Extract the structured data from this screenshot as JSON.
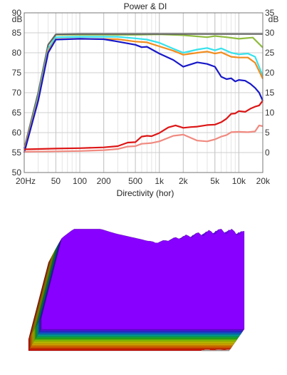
{
  "charts": [
    {
      "title": "Power & DI",
      "left_unit": "dB",
      "right_unit": "dB",
      "left_ticks": [
        "90",
        "85",
        "80",
        "75",
        "70",
        "65",
        "60",
        "55",
        "50"
      ],
      "right_ticks": [
        "35",
        "30",
        "25",
        "20",
        "15",
        "10",
        "5",
        "0"
      ],
      "x_ticks": [
        "20Hz",
        "50",
        "100",
        "200",
        "500",
        "1k",
        "2k",
        "5k",
        "10k",
        "20k"
      ]
    },
    {
      "title": "Directivity (hor)"
    }
  ],
  "chart_data": [
    {
      "type": "line",
      "title": "Power & DI",
      "x_scale": "log",
      "xlim": [
        20,
        20000
      ],
      "ylim": [
        50,
        90
      ],
      "y2lim": [
        -5,
        35
      ],
      "x_tick_values": [
        20,
        50,
        100,
        200,
        500,
        1000,
        2000,
        5000,
        10000,
        20000
      ],
      "grid": true,
      "series": [
        {
          "color": "#8fbc3f",
          "axis": "left",
          "points": [
            [
              20,
              56
            ],
            [
              30,
              70
            ],
            [
              40,
              82
            ],
            [
              50,
              84.5
            ],
            [
              100,
              84.5
            ],
            [
              500,
              84.5
            ],
            [
              1000,
              84.6
            ],
            [
              2000,
              84.4
            ],
            [
              4000,
              83.9
            ],
            [
              5000,
              84.2
            ],
            [
              7000,
              83.9
            ],
            [
              10000,
              83.5
            ],
            [
              15000,
              83.8
            ],
            [
              20000,
              81.3
            ]
          ]
        },
        {
          "color": "#666666",
          "axis": "left",
          "points": [
            [
              20,
              56
            ],
            [
              30,
              70
            ],
            [
              40,
              82
            ],
            [
              50,
              84.6
            ],
            [
              100,
              84.7
            ],
            [
              500,
              84.7
            ],
            [
              1000,
              84.7
            ],
            [
              2000,
              84.7
            ],
            [
              5000,
              84.7
            ],
            [
              10000,
              84.7
            ],
            [
              20000,
              84.7
            ]
          ]
        },
        {
          "color": "#36e2ec",
          "axis": "left",
          "points": [
            [
              20,
              55.5
            ],
            [
              30,
              69
            ],
            [
              40,
              81
            ],
            [
              50,
              83.9
            ],
            [
              100,
              84
            ],
            [
              300,
              84
            ],
            [
              500,
              83.6
            ],
            [
              700,
              83.3
            ],
            [
              1000,
              82.5
            ],
            [
              1500,
              81
            ],
            [
              2000,
              80
            ],
            [
              3000,
              80.8
            ],
            [
              4000,
              81.2
            ],
            [
              5000,
              80.6
            ],
            [
              6000,
              81.1
            ],
            [
              8000,
              80
            ],
            [
              10000,
              79.6
            ],
            [
              13000,
              79.8
            ],
            [
              16000,
              79
            ],
            [
              20000,
              74.2
            ]
          ]
        },
        {
          "color": "#f28c1e",
          "axis": "left",
          "points": [
            [
              20,
              55.5
            ],
            [
              30,
              68.5
            ],
            [
              40,
              80.5
            ],
            [
              50,
              83.4
            ],
            [
              100,
              83.5
            ],
            [
              300,
              83.4
            ],
            [
              500,
              82.8
            ],
            [
              700,
              82.6
            ],
            [
              1000,
              81.6
            ],
            [
              1500,
              80.5
            ],
            [
              2000,
              79.5
            ],
            [
              3000,
              80
            ],
            [
              4000,
              80.3
            ],
            [
              5000,
              79.8
            ],
            [
              6000,
              80.1
            ],
            [
              8000,
              79
            ],
            [
              10000,
              78.8
            ],
            [
              13000,
              78.8
            ],
            [
              16000,
              77.5
            ],
            [
              20000,
              73.5
            ]
          ]
        },
        {
          "color": "#1818c8",
          "axis": "left",
          "points": [
            [
              20,
              55
            ],
            [
              30,
              68
            ],
            [
              40,
              80
            ],
            [
              50,
              83.3
            ],
            [
              100,
              83.5
            ],
            [
              200,
              83.4
            ],
            [
              300,
              82.8
            ],
            [
              500,
              82
            ],
            [
              600,
              81.4
            ],
            [
              700,
              81.5
            ],
            [
              1000,
              79.8
            ],
            [
              1500,
              78.2
            ],
            [
              2000,
              76.5
            ],
            [
              3000,
              77.6
            ],
            [
              4000,
              77.2
            ],
            [
              5000,
              76.5
            ],
            [
              6000,
              74
            ],
            [
              7000,
              73.4
            ],
            [
              8000,
              73.6
            ],
            [
              9000,
              72.8
            ],
            [
              10000,
              73.2
            ],
            [
              12000,
              73
            ],
            [
              14000,
              72.2
            ],
            [
              16000,
              71.2
            ],
            [
              18000,
              70
            ],
            [
              20000,
              68
            ]
          ]
        },
        {
          "color": "#dd1515",
          "axis": "left",
          "points": [
            [
              20,
              55.8
            ],
            [
              50,
              56
            ],
            [
              100,
              56.1
            ],
            [
              200,
              56.3
            ],
            [
              300,
              56.6
            ],
            [
              400,
              57.5
            ],
            [
              500,
              57.6
            ],
            [
              600,
              59
            ],
            [
              700,
              59.2
            ],
            [
              800,
              59.1
            ],
            [
              1000,
              59.9
            ],
            [
              1300,
              61.3
            ],
            [
              1600,
              61.8
            ],
            [
              2000,
              61.2
            ],
            [
              2500,
              61.4
            ],
            [
              3000,
              61.5
            ],
            [
              4000,
              61.9
            ],
            [
              5000,
              62
            ],
            [
              6000,
              62.6
            ],
            [
              7000,
              63.5
            ],
            [
              8000,
              64.7
            ],
            [
              9000,
              64.8
            ],
            [
              10000,
              65.4
            ],
            [
              12000,
              65.2
            ],
            [
              14000,
              66
            ],
            [
              16000,
              66.5
            ],
            [
              18000,
              66.8
            ],
            [
              20000,
              68
            ]
          ]
        },
        {
          "color": "#f08a80",
          "axis": "right",
          "points": [
            [
              20,
              0.2
            ],
            [
              50,
              0.3
            ],
            [
              100,
              0.4
            ],
            [
              200,
              0.6
            ],
            [
              300,
              0.9
            ],
            [
              400,
              1.5
            ],
            [
              500,
              1.6
            ],
            [
              600,
              2.2
            ],
            [
              800,
              2.4
            ],
            [
              1000,
              2.8
            ],
            [
              1500,
              4.2
            ],
            [
              2000,
              4.5
            ],
            [
              3000,
              3
            ],
            [
              4000,
              2.8
            ],
            [
              5000,
              3.3
            ],
            [
              6000,
              4
            ],
            [
              7000,
              4.4
            ],
            [
              8000,
              5.1
            ],
            [
              10000,
              5.2
            ],
            [
              13000,
              5.1
            ],
            [
              16000,
              5.3
            ],
            [
              18000,
              6.8
            ],
            [
              20000,
              6.6
            ]
          ]
        }
      ]
    },
    {
      "type": "surface",
      "title": "Directivity (hor)",
      "colormap": [
        "#ee0000",
        "#ff6600",
        "#ffcc00",
        "#ccee00",
        "#22cc22",
        "#00bbbb",
        "#2244ff",
        "#8800ff"
      ],
      "angle_slices": 40,
      "x_scale": "log",
      "xlim": [
        20,
        20000
      ],
      "profile_on_axis_db": [
        [
          20,
          45
        ],
        [
          40,
          80
        ],
        [
          60,
          84
        ],
        [
          150,
          84
        ],
        [
          250,
          82
        ],
        [
          500,
          80
        ],
        [
          700,
          79
        ],
        [
          1000,
          78
        ],
        [
          2000,
          80
        ],
        [
          5000,
          82
        ],
        [
          8000,
          83
        ],
        [
          12000,
          83
        ],
        [
          20000,
          82
        ]
      ],
      "edge_drop_db": [
        [
          20,
          0
        ],
        [
          500,
          5
        ],
        [
          700,
          15
        ],
        [
          1000,
          24
        ],
        [
          1400,
          26
        ],
        [
          2000,
          29
        ],
        [
          3000,
          33
        ],
        [
          5000,
          36
        ],
        [
          8000,
          45
        ],
        [
          12000,
          45
        ],
        [
          20000,
          45
        ]
      ]
    }
  ]
}
